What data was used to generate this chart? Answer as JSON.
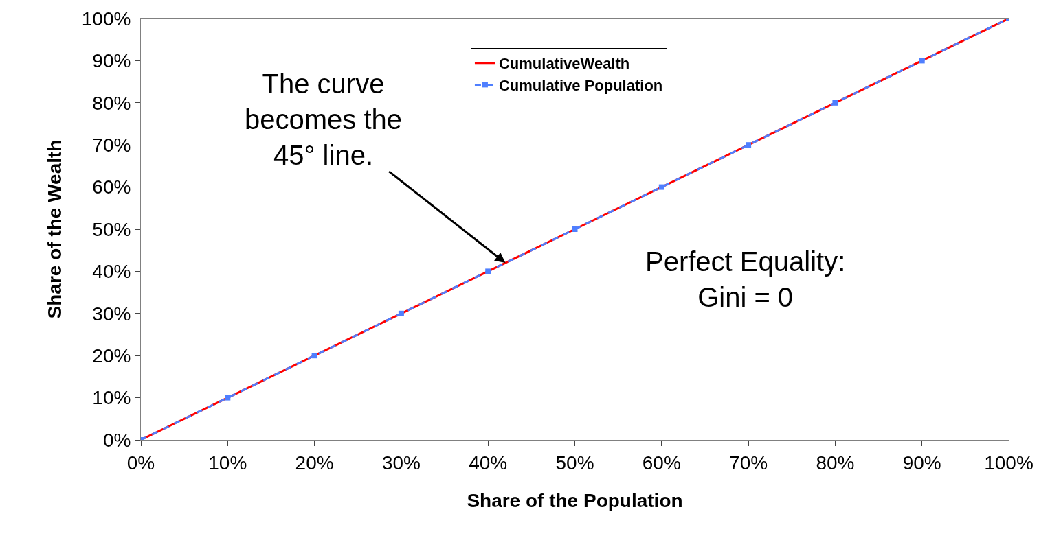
{
  "chart_data": {
    "type": "line",
    "xlabel": "Share of the Population",
    "ylabel": "Share of the Wealth",
    "x": [
      0,
      10,
      20,
      30,
      40,
      50,
      60,
      70,
      80,
      90,
      100
    ],
    "series": [
      {
        "name": "CumulativeWealth",
        "color": "#ff0000",
        "values": [
          0,
          10,
          20,
          30,
          40,
          50,
          60,
          70,
          80,
          90,
          100
        ],
        "line_style": "solid",
        "marker": "none"
      },
      {
        "name": "Cumulative Population",
        "color": "#4f7fff",
        "values": [
          0,
          10,
          20,
          30,
          40,
          50,
          60,
          70,
          80,
          90,
          100
        ],
        "line_style": "dashed",
        "marker": "square"
      }
    ],
    "xlim": [
      0,
      100
    ],
    "ylim": [
      0,
      100
    ],
    "xticks": [
      {
        "value": 0,
        "label": "0%"
      },
      {
        "value": 10,
        "label": "10%"
      },
      {
        "value": 20,
        "label": "20%"
      },
      {
        "value": 30,
        "label": "30%"
      },
      {
        "value": 40,
        "label": "40%"
      },
      {
        "value": 50,
        "label": "50%"
      },
      {
        "value": 60,
        "label": "60%"
      },
      {
        "value": 70,
        "label": "70%"
      },
      {
        "value": 80,
        "label": "80%"
      },
      {
        "value": 90,
        "label": "90%"
      },
      {
        "value": 100,
        "label": "100%"
      }
    ],
    "yticks": [
      {
        "value": 0,
        "label": "0%"
      },
      {
        "value": 10,
        "label": "10%"
      },
      {
        "value": 20,
        "label": "20%"
      },
      {
        "value": 30,
        "label": "30%"
      },
      {
        "value": 40,
        "label": "40%"
      },
      {
        "value": 50,
        "label": "50%"
      },
      {
        "value": 60,
        "label": "60%"
      },
      {
        "value": 70,
        "label": "70%"
      },
      {
        "value": 80,
        "label": "80%"
      },
      {
        "value": 90,
        "label": "90%"
      },
      {
        "value": 100,
        "label": "100%"
      }
    ],
    "annotations": [
      {
        "text": "The curve\nbecomes the\n45° line.",
        "x": 42,
        "y": 42
      },
      "Perfect Equality:\nGini = 0"
    ],
    "legend": "top"
  }
}
